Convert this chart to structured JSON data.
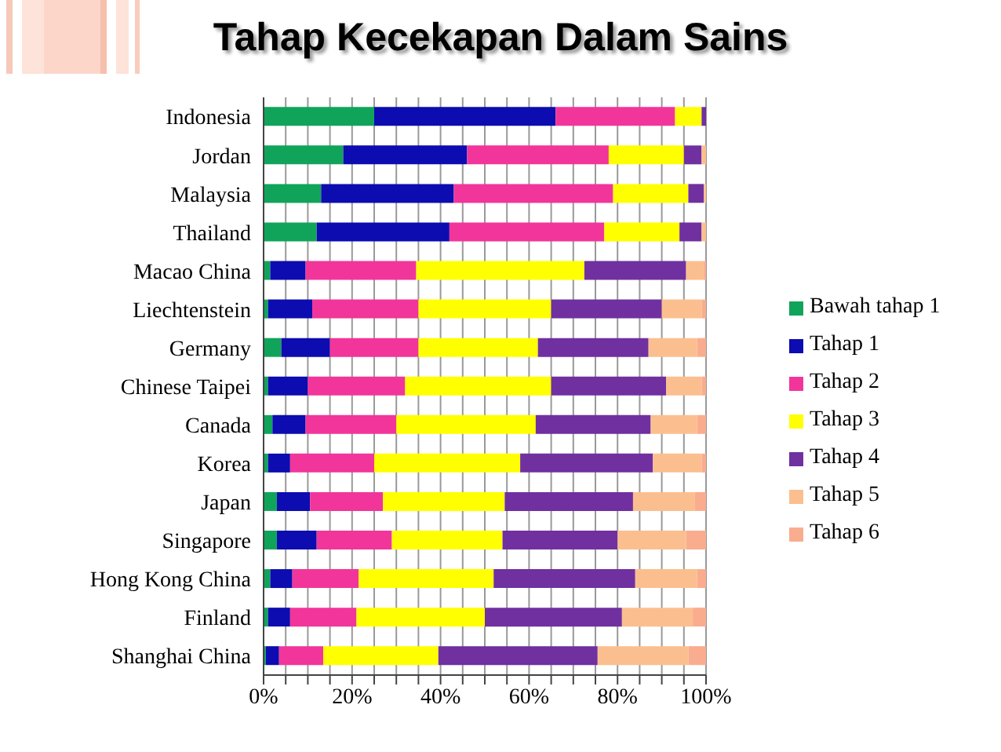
{
  "chart_data": {
    "type": "bar",
    "orientation": "horizontal",
    "stacked": true,
    "title": "Tahap Kecekapan Dalam Sains",
    "categories": [
      "Indonesia",
      "Jordan",
      "Malaysia",
      "Thailand",
      "Macao China",
      "Liechtenstein",
      "Germany",
      "Chinese Taipei",
      "Canada",
      "Korea",
      "Japan",
      "Singapore",
      "Hong Kong China",
      "Finland",
      "Shanghai China"
    ],
    "series": [
      {
        "name": "Bawah tahap 1",
        "color": "#10a45a",
        "values": [
          25,
          18,
          13,
          12,
          1.5,
          1,
          4,
          1,
          2,
          1,
          3,
          3,
          1.5,
          1,
          0.5
        ]
      },
      {
        "name": "Tahap 1",
        "color": "#0c0cb0",
        "values": [
          41,
          28,
          30,
          30,
          8,
          10,
          11,
          9,
          7.5,
          5,
          7.5,
          9,
          5,
          5,
          3
        ]
      },
      {
        "name": "Tahap 2",
        "color": "#f2359a",
        "values": [
          27,
          32,
          36,
          35,
          25,
          24,
          20,
          22,
          20.5,
          19,
          16.5,
          17,
          15,
          15,
          10
        ]
      },
      {
        "name": "Tahap 3",
        "color": "#ffff00",
        "values": [
          6,
          17,
          17,
          17,
          38,
          30,
          27,
          33,
          31.5,
          33,
          27.5,
          25,
          30.5,
          29,
          26
        ]
      },
      {
        "name": "Tahap 4",
        "color": "#7030a0",
        "values": [
          1,
          4,
          3.5,
          5,
          23,
          25,
          25,
          26,
          26,
          30,
          29,
          26,
          32,
          31,
          36
        ]
      },
      {
        "name": "Tahap 5",
        "color": "#fbbf8f",
        "values": [
          0,
          1,
          0.5,
          1,
          4,
          9,
          11,
          8,
          10.5,
          11,
          14,
          15.5,
          14,
          16,
          20.5
        ]
      },
      {
        "name": "Tahap 6",
        "color": "#f9ad8e",
        "values": [
          0,
          0,
          0,
          0,
          0.5,
          1,
          2,
          1,
          2,
          1,
          2.5,
          4.5,
          2,
          3,
          4
        ]
      }
    ],
    "xlim": [
      0,
      100
    ],
    "xticks": [
      {
        "value": 0,
        "label": "0%"
      },
      {
        "value": 5,
        "label": null
      },
      {
        "value": 10,
        "label": null
      },
      {
        "value": 15,
        "label": null
      },
      {
        "value": 20,
        "label": "20%"
      },
      {
        "value": 25,
        "label": null
      },
      {
        "value": 30,
        "label": null
      },
      {
        "value": 35,
        "label": null
      },
      {
        "value": 40,
        "label": "40%"
      },
      {
        "value": 45,
        "label": null
      },
      {
        "value": 50,
        "label": null
      },
      {
        "value": 55,
        "label": null
      },
      {
        "value": 60,
        "label": "60%"
      },
      {
        "value": 65,
        "label": null
      },
      {
        "value": 70,
        "label": null
      },
      {
        "value": 75,
        "label": null
      },
      {
        "value": 80,
        "label": "80%"
      },
      {
        "value": 85,
        "label": null
      },
      {
        "value": 90,
        "label": null
      },
      {
        "value": 95,
        "label": null
      },
      {
        "value": 100,
        "label": "100%"
      }
    ],
    "grid": "x",
    "legend": "right"
  }
}
